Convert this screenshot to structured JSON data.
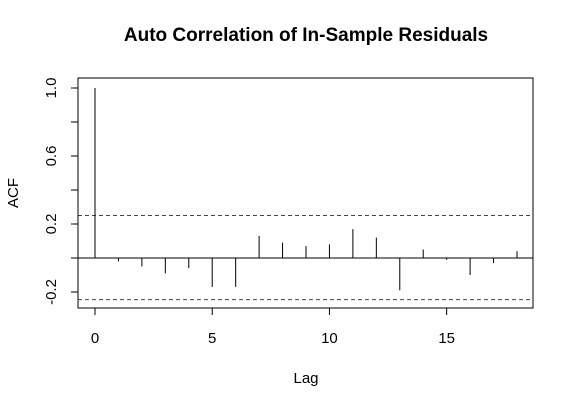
{
  "chart_data": {
    "type": "bar",
    "title": "Auto Correlation of In-Sample Residuals",
    "xlabel": "Lag",
    "ylabel": "ACF",
    "xlim": [
      0,
      18
    ],
    "ylim": [
      -0.3,
      1.06
    ],
    "x_ticks": [
      0,
      5,
      10,
      15
    ],
    "x_tick_labels": [
      "0",
      "5",
      "10",
      "15"
    ],
    "y_ticks": [
      -0.2,
      0.2,
      0.6,
      1.0
    ],
    "y_tick_labels": [
      "-0.2",
      "0.2",
      "0.6",
      "1.0"
    ],
    "grid": false,
    "lags": [
      0,
      1,
      2,
      3,
      4,
      5,
      6,
      7,
      8,
      9,
      10,
      11,
      12,
      13,
      14,
      15,
      16,
      17,
      18
    ],
    "values": [
      1.0,
      -0.02,
      -0.05,
      -0.09,
      -0.06,
      -0.17,
      -0.17,
      0.13,
      0.09,
      0.07,
      0.08,
      0.17,
      0.12,
      -0.19,
      0.05,
      -0.01,
      -0.1,
      -0.03,
      0.04
    ],
    "confidence_bounds": [
      0.25,
      -0.245
    ],
    "colors": {
      "bars": "#000000",
      "confidence": "#3333cc",
      "zero_line": "#000000"
    }
  }
}
